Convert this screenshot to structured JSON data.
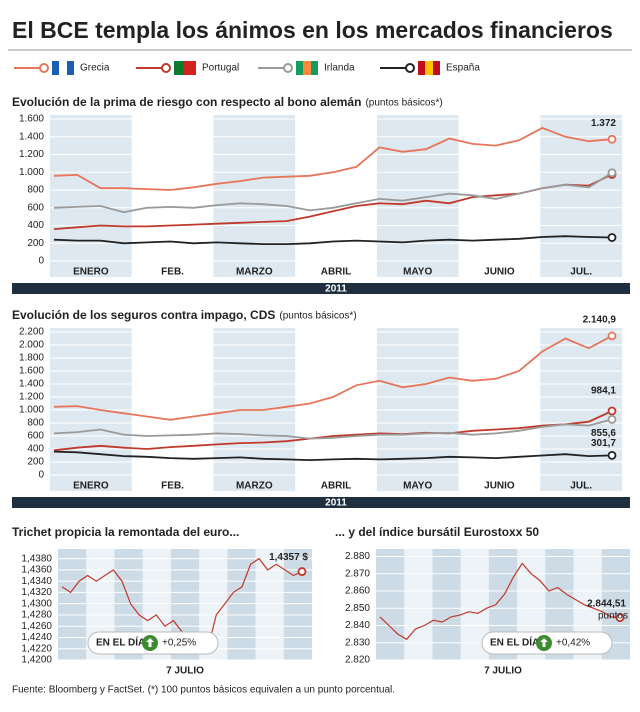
{
  "title": "El BCE templa los ánimos en los mercados financieros",
  "footer": "Fuente: Bloomberg y FactSet. (*) 100 puntos básicos equivalen a un punto porcentual.",
  "chart_data": [
    {
      "type": "line",
      "title": "Evolución de la prima de riesgo con respecto al bono alemán",
      "subtitle": "(puntos básicos*)",
      "x_labels": [
        "ENERO",
        "FEB.",
        "MARZO",
        "ABRIL",
        "MAYO",
        "JUNIO",
        "JUL."
      ],
      "year_label": "2011",
      "ylim": [
        0,
        1600
      ],
      "yticks": [
        0,
        200,
        400,
        600,
        800,
        {
          "value": 1000,
          "label": "1.000"
        },
        {
          "value": 1200,
          "label": "1.200"
        },
        {
          "value": 1400,
          "label": "1.400"
        },
        {
          "value": 1600,
          "label": "1.600"
        }
      ],
      "series": [
        {
          "name": "Grecia",
          "color": "#e8755a",
          "values": [
            960,
            970,
            820,
            820,
            810,
            800,
            830,
            870,
            900,
            940,
            950,
            960,
            1000,
            1060,
            1280,
            1230,
            1260,
            1380,
            1320,
            1300,
            1360,
            1500,
            1400,
            1350,
            1372
          ],
          "value_labels": [
            null,
            null,
            null,
            null,
            null,
            null,
            null,
            null,
            null,
            null,
            null,
            null,
            null,
            null,
            null,
            null,
            null,
            null,
            null,
            null,
            null,
            null,
            null,
            null,
            "1.372"
          ]
        },
        {
          "name": "Portugal",
          "color": "#c0392b",
          "values": [
            360,
            380,
            400,
            390,
            390,
            400,
            410,
            420,
            430,
            440,
            450,
            500,
            560,
            620,
            650,
            640,
            680,
            650,
            720,
            740,
            760,
            820,
            860,
            850,
            975
          ]
        },
        {
          "name": "Irlanda",
          "color": "#9a9a9a",
          "values": [
            600,
            610,
            620,
            550,
            600,
            610,
            600,
            630,
            650,
            640,
            620,
            570,
            600,
            650,
            700,
            680,
            720,
            760,
            740,
            700,
            760,
            820,
            860,
            830,
            994
          ]
        },
        {
          "name": "España",
          "color": "#222222",
          "values": [
            240,
            230,
            230,
            200,
            210,
            220,
            200,
            210,
            200,
            190,
            190,
            200,
            220,
            230,
            220,
            210,
            230,
            240,
            230,
            240,
            250,
            270,
            280,
            270,
            265
          ]
        }
      ]
    },
    {
      "type": "line",
      "title": "Evolución de los seguros contra impago, CDS",
      "subtitle": "(puntos básicos*)",
      "x_labels": [
        "ENERO",
        "FEB.",
        "MARZO",
        "ABRIL",
        "MAYO",
        "JUNIO",
        "JUL."
      ],
      "year_label": "2011",
      "ylim": [
        0,
        2200
      ],
      "yticks": [
        0,
        200,
        400,
        600,
        800,
        {
          "value": 1000,
          "label": "1.000"
        },
        {
          "value": 1200,
          "label": "1.200"
        },
        {
          "value": 1400,
          "label": "1.400"
        },
        {
          "value": 1600,
          "label": "1.600"
        },
        {
          "value": 1800,
          "label": "1.800"
        },
        {
          "value": 2000,
          "label": "2.000"
        },
        {
          "value": 2200,
          "label": "2.200"
        }
      ],
      "series": [
        {
          "name": "Grecia",
          "color": "#e8755a",
          "values": [
            1050,
            1060,
            1000,
            950,
            900,
            850,
            900,
            950,
            1000,
            1000,
            1050,
            1100,
            1200,
            1380,
            1450,
            1350,
            1400,
            1500,
            1450,
            1480,
            1600,
            1900,
            2100,
            1950,
            2140.9
          ],
          "value_labels": [
            null,
            null,
            null,
            null,
            null,
            null,
            null,
            null,
            null,
            null,
            null,
            null,
            null,
            null,
            null,
            null,
            null,
            null,
            null,
            null,
            null,
            null,
            null,
            null,
            "2.140,9"
          ]
        },
        {
          "name": "Portugal",
          "color": "#c0392b",
          "values": [
            380,
            420,
            450,
            420,
            400,
            430,
            450,
            470,
            490,
            500,
            520,
            560,
            600,
            620,
            640,
            630,
            650,
            640,
            680,
            700,
            720,
            760,
            780,
            820,
            984.1
          ],
          "value_labels": [
            null,
            null,
            null,
            null,
            null,
            null,
            null,
            null,
            null,
            null,
            null,
            null,
            null,
            null,
            null,
            null,
            null,
            null,
            null,
            null,
            null,
            null,
            null,
            null,
            "984,1"
          ]
        },
        {
          "name": "Irlanda",
          "color": "#9a9a9a",
          "values": [
            640,
            660,
            700,
            620,
            600,
            610,
            620,
            640,
            630,
            610,
            600,
            560,
            570,
            600,
            620,
            620,
            640,
            650,
            620,
            640,
            680,
            740,
            780,
            760,
            855.6
          ],
          "value_labels": [
            null,
            null,
            null,
            null,
            null,
            null,
            null,
            null,
            null,
            null,
            null,
            null,
            null,
            null,
            null,
            null,
            null,
            null,
            null,
            null,
            null,
            null,
            null,
            null,
            "855,6"
          ]
        },
        {
          "name": "España",
          "color": "#222222",
          "values": [
            360,
            350,
            320,
            290,
            280,
            260,
            250,
            260,
            270,
            250,
            240,
            230,
            240,
            250,
            240,
            250,
            260,
            280,
            270,
            260,
            280,
            300,
            320,
            290,
            301.7
          ],
          "value_labels": [
            null,
            null,
            null,
            null,
            null,
            null,
            null,
            null,
            null,
            null,
            null,
            null,
            null,
            null,
            null,
            null,
            null,
            null,
            null,
            null,
            null,
            null,
            null,
            null,
            "301,7"
          ]
        }
      ]
    },
    {
      "type": "line",
      "title": "Trichet propicia la remontada del euro...",
      "x_label": "7 JULIO",
      "ylim": [
        1.42,
        1.439
      ],
      "yticks": [
        {
          "value": 1.42,
          "label": "1,4200"
        },
        {
          "value": 1.422,
          "label": "1,4220"
        },
        {
          "value": 1.424,
          "label": "1,4240"
        },
        {
          "value": 1.426,
          "label": "1,4260"
        },
        {
          "value": 1.428,
          "label": "1,4280"
        },
        {
          "value": 1.43,
          "label": "1,4300"
        },
        {
          "value": 1.432,
          "label": "1,4320"
        },
        {
          "value": 1.434,
          "label": "1,4340"
        },
        {
          "value": 1.436,
          "label": "1,4360"
        },
        {
          "value": 1.438,
          "label": "1,4380"
        }
      ],
      "badge": "EN EL DÍA",
      "change": "+0,25%",
      "series": [
        {
          "color": "#c0392b",
          "values": [
            1.433,
            1.432,
            1.434,
            1.435,
            1.434,
            1.435,
            1.436,
            1.434,
            1.43,
            1.428,
            1.427,
            1.428,
            1.426,
            1.427,
            1.425,
            1.423,
            1.424,
            1.422,
            1.428,
            1.43,
            1.432,
            1.433,
            1.437,
            1.438,
            1.436,
            1.437,
            1.436,
            1.435,
            1.4357
          ],
          "value_labels": [
            null,
            null,
            null,
            null,
            null,
            null,
            null,
            null,
            null,
            null,
            null,
            null,
            null,
            null,
            null,
            null,
            null,
            null,
            null,
            null,
            null,
            null,
            null,
            null,
            null,
            null,
            null,
            null,
            "1,4357 $"
          ]
        }
      ]
    },
    {
      "type": "line",
      "title": "... y del índice bursátil Eurostoxx 50",
      "x_label": "7 JULIO",
      "ylim": [
        2820,
        2882
      ],
      "yticks": [
        {
          "value": 2820,
          "label": "2.820"
        },
        {
          "value": 2830,
          "label": "2.830"
        },
        {
          "value": 2840,
          "label": "2.840"
        },
        {
          "value": 2850,
          "label": "2.850"
        },
        {
          "value": 2860,
          "label": "2.860"
        },
        {
          "value": 2870,
          "label": "2.870"
        },
        {
          "value": 2880,
          "label": "2.880"
        }
      ],
      "badge": "EN EL DÍA",
      "change": "+0,42%",
      "value_note": "puntos",
      "series": [
        {
          "color": "#c0392b",
          "values": [
            2845,
            2840,
            2835,
            2832,
            2838,
            2840,
            2843,
            2842,
            2845,
            2846,
            2848,
            2847,
            2850,
            2852,
            2858,
            2868,
            2876,
            2870,
            2866,
            2860,
            2862,
            2858,
            2855,
            2852,
            2850,
            2848,
            2845,
            2844.51
          ],
          "value_labels": [
            null,
            null,
            null,
            null,
            null,
            null,
            null,
            null,
            null,
            null,
            null,
            null,
            null,
            null,
            null,
            null,
            null,
            null,
            null,
            null,
            null,
            null,
            null,
            null,
            null,
            null,
            null,
            "2.844,51"
          ]
        }
      ]
    }
  ]
}
